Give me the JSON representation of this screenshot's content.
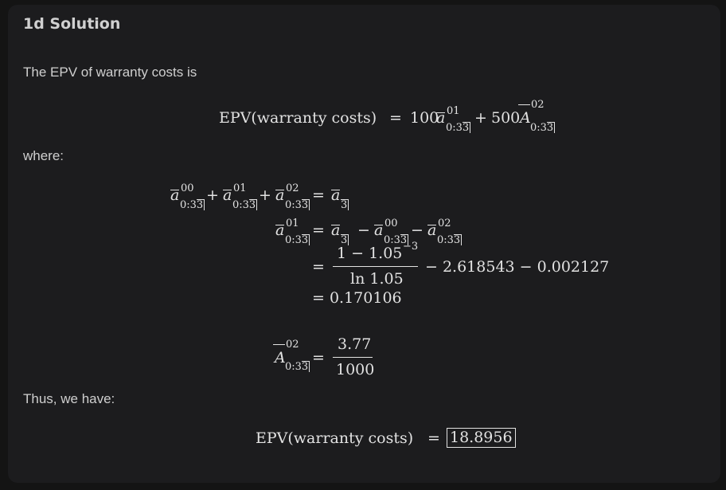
{
  "heading": "1d Solution",
  "intro": "The EPV of warranty costs is",
  "where_label": "where:",
  "thus_label": "Thus, we have:",
  "eq1": {
    "lhs": "EPV(warranty costs)",
    "eq": "=",
    "c1": "100",
    "c2": "500",
    "plus": "+"
  },
  "sym": {
    "a": "a",
    "A": "A",
    "s00": "00",
    "s01": "01",
    "s02": "02",
    "sub": "0:3",
    "n": "3"
  },
  "eq3": {
    "num": "1 − 1.05",
    "num_exp": "−3",
    "den": "ln 1.05",
    "tail": "− 2.618543 − 0.002127"
  },
  "eq4": {
    "result": "= 0.170106"
  },
  "eq5": {
    "num": "3.77",
    "den": "1000"
  },
  "final": {
    "lhs": "EPV(warranty costs)",
    "eq": "=",
    "value": "18.8956"
  }
}
